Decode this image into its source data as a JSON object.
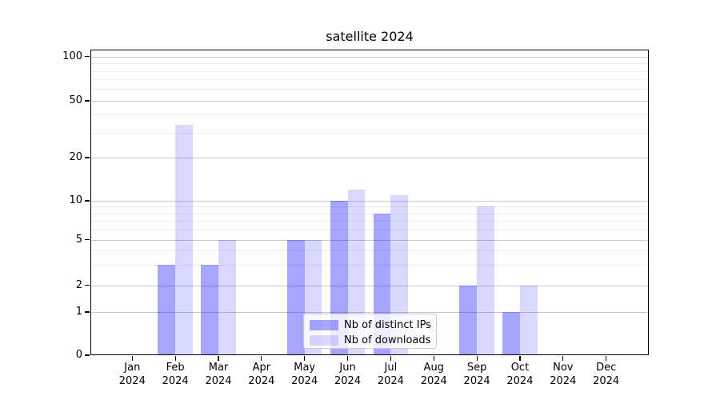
{
  "chart_data": {
    "type": "bar",
    "title": "satellite 2024",
    "xlabel": "",
    "ylabel": "",
    "x_axis": {
      "categories": [
        {
          "month": "Jan",
          "year": "2024"
        },
        {
          "month": "Feb",
          "year": "2024"
        },
        {
          "month": "Mar",
          "year": "2024"
        },
        {
          "month": "Apr",
          "year": "2024"
        },
        {
          "month": "May",
          "year": "2024"
        },
        {
          "month": "Jun",
          "year": "2024"
        },
        {
          "month": "Jul",
          "year": "2024"
        },
        {
          "month": "Aug",
          "year": "2024"
        },
        {
          "month": "Sep",
          "year": "2024"
        },
        {
          "month": "Oct",
          "year": "2024"
        },
        {
          "month": "Nov",
          "year": "2024"
        },
        {
          "month": "Dec",
          "year": "2024"
        }
      ]
    },
    "y_axis": {
      "scale": "log-like (linear near zero)",
      "ticks": [
        0,
        1,
        2,
        5,
        10,
        20,
        50,
        100
      ],
      "tick_labels": [
        "0",
        "1",
        "2",
        "5",
        "10",
        "20",
        "50",
        "100"
      ],
      "minor_ticks": [
        3,
        4,
        6,
        7,
        8,
        9,
        30,
        40,
        60,
        70,
        80,
        90
      ],
      "range": [
        0,
        112
      ]
    },
    "series": [
      {
        "name": "Nb of distinct IPs",
        "key": "distinct-ips",
        "color": "#0000ff59",
        "values": [
          0,
          3,
          3,
          0,
          5,
          10,
          8,
          0,
          2,
          1,
          0,
          0
        ]
      },
      {
        "name": "Nb of downloads",
        "key": "downloads",
        "color": "#0000ff26",
        "values": [
          0,
          34,
          5,
          0,
          5,
          12,
          11,
          0,
          9,
          2,
          0,
          0
        ]
      }
    ],
    "legend": {
      "position": "lower center",
      "background": "rgba(255,255,255,0.8)",
      "border_color": "#cccccc"
    },
    "grid": {
      "major_color": "#c9c9c9",
      "minor_color": "#ebebeb"
    }
  }
}
